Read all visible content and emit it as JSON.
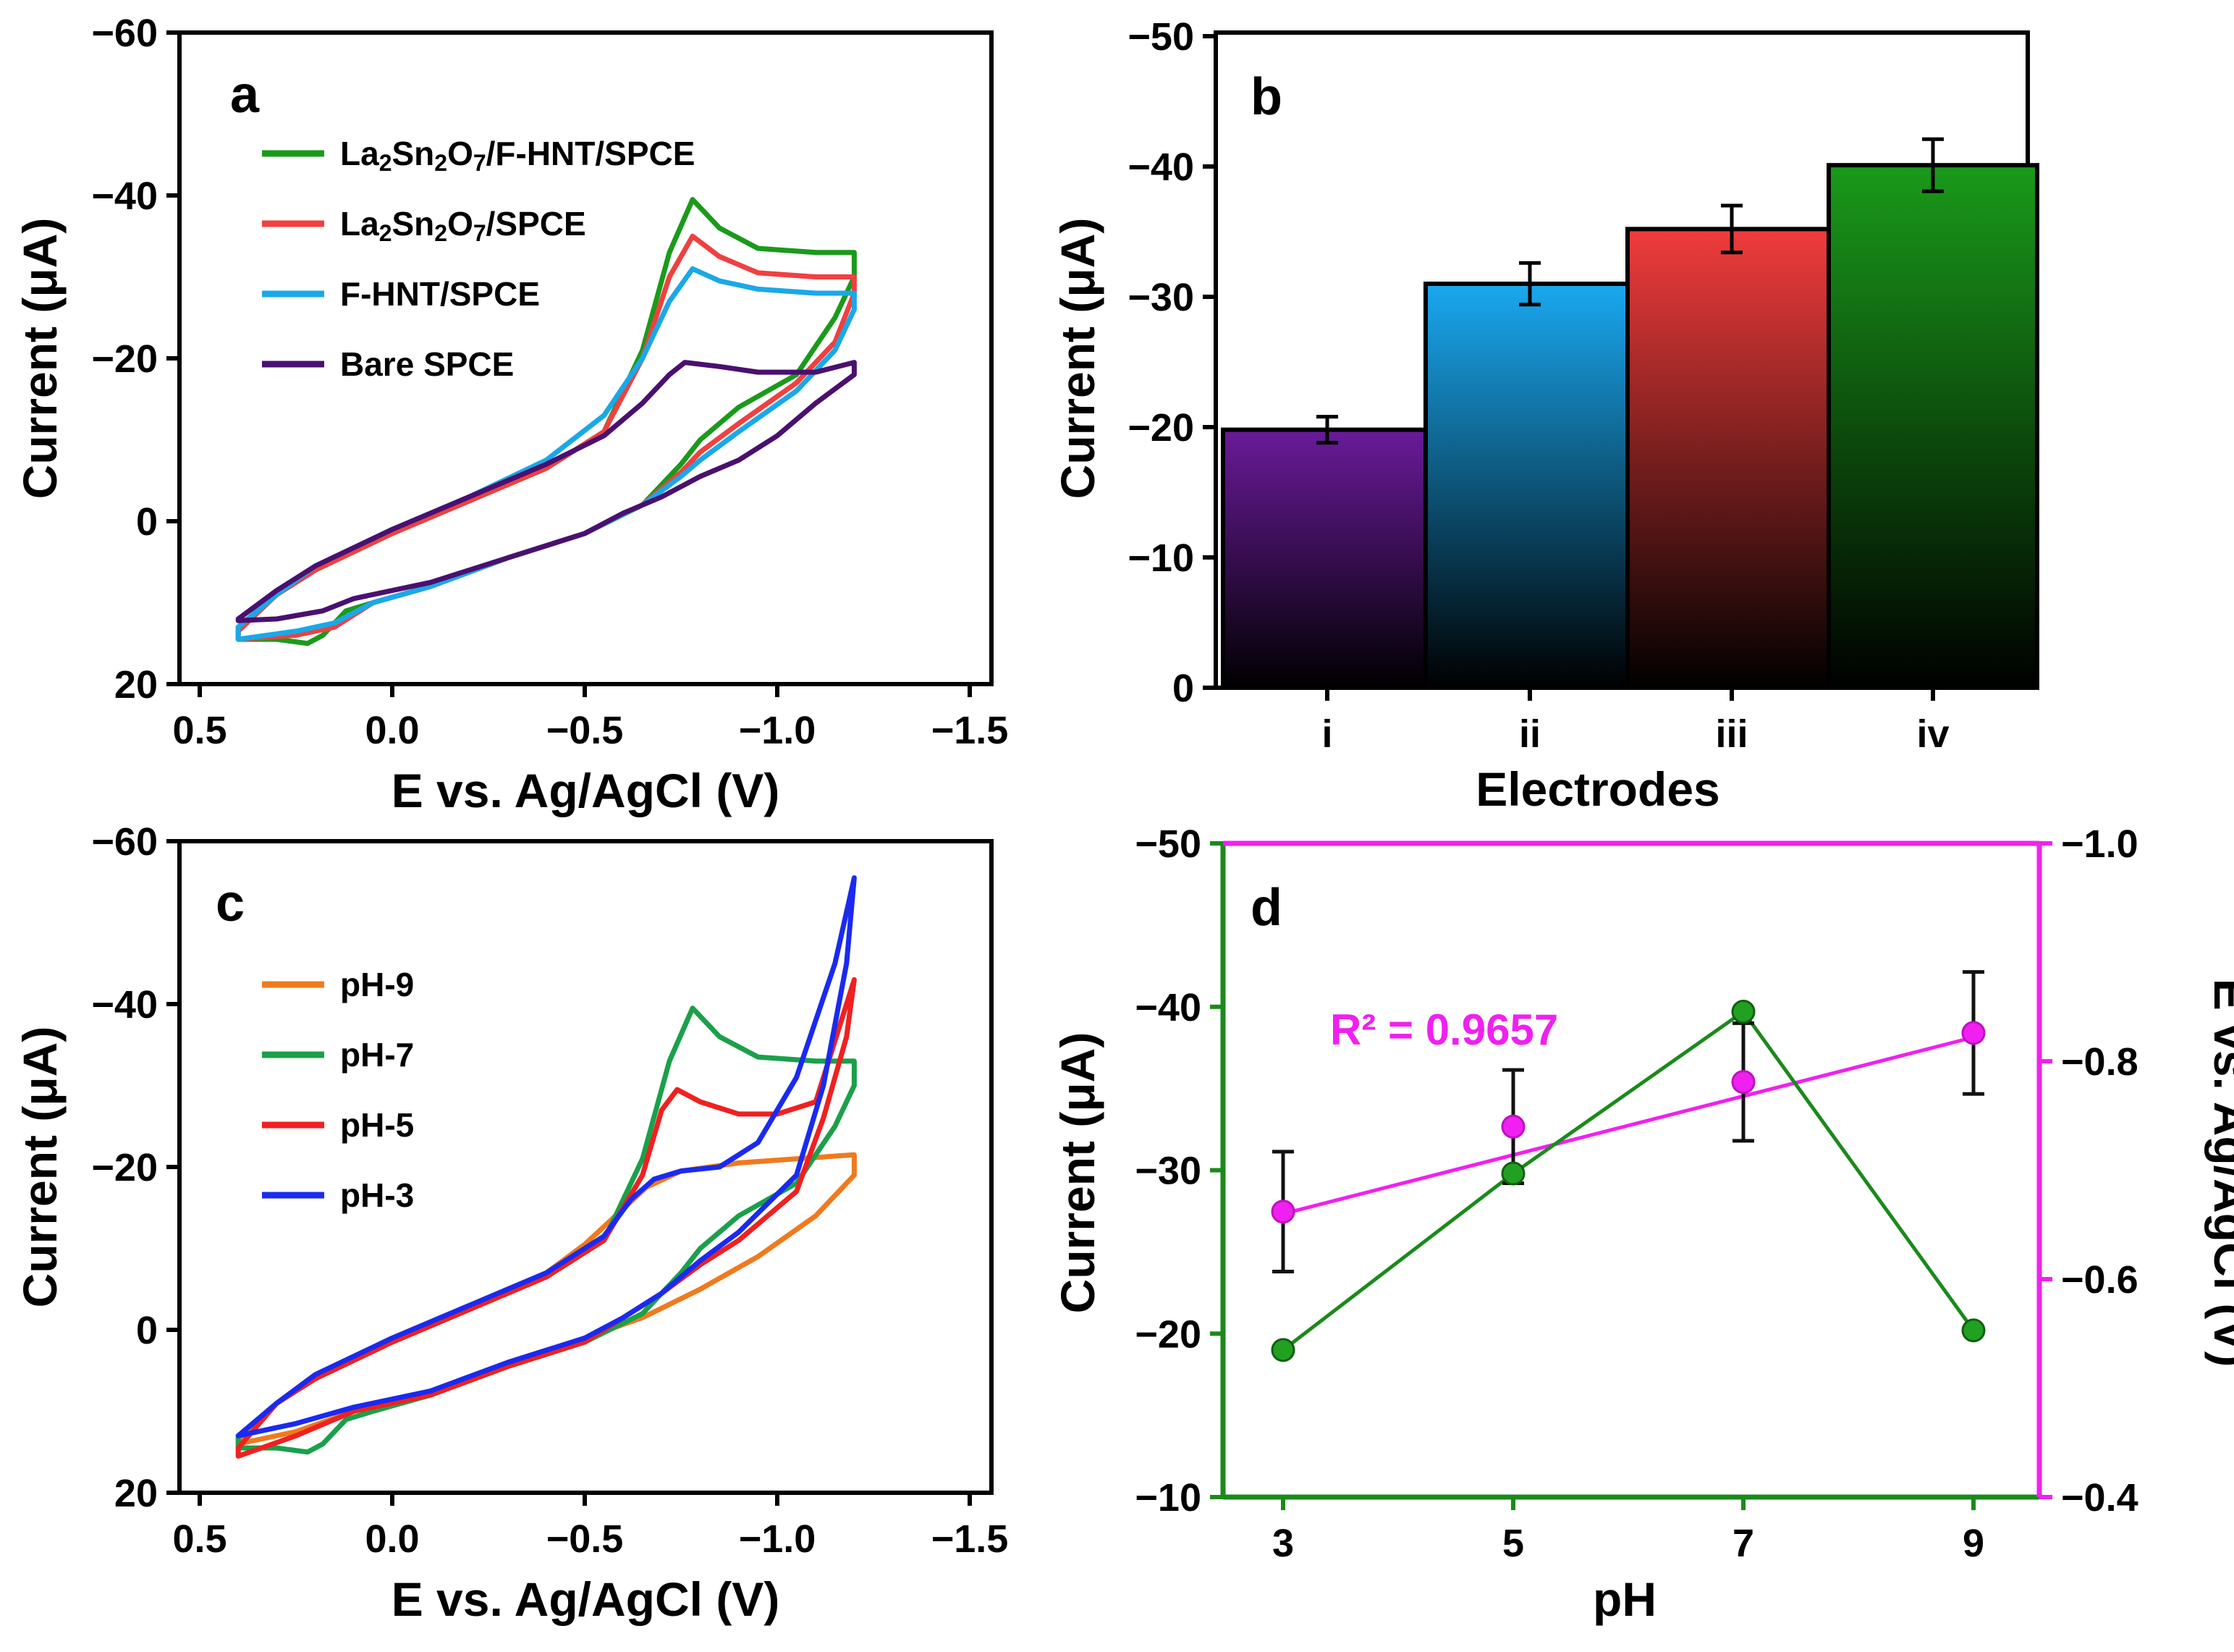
{
  "chart_data": [
    {
      "panel": "a",
      "type": "line",
      "xlabel": "E vs. Ag/AgCl (V)",
      "ylabel": "Current (μA)",
      "xlim": [
        0.5,
        -1.5
      ],
      "ylim": [
        20,
        -60
      ],
      "xticks": [
        "0.5",
        "0.0",
        "−0.5",
        "−1.0",
        "−1.5"
      ],
      "yticks": [
        "20",
        "0",
        "−20",
        "−40",
        "−60"
      ],
      "legend_position": "top-left",
      "series": [
        {
          "name": "La2Sn2O7/F-HNT/SPCE",
          "color": "#1a9a1a",
          "points": [
            [
              0.4,
              13
            ],
            [
              0.3,
              9
            ],
            [
              0.2,
              6
            ],
            [
              0.0,
              1.5
            ],
            [
              -0.2,
              -2.5
            ],
            [
              -0.4,
              -6.5
            ],
            [
              -0.55,
              -11
            ],
            [
              -0.65,
              -21
            ],
            [
              -0.72,
              -33
            ],
            [
              -0.78,
              -39.5
            ],
            [
              -0.85,
              -36
            ],
            [
              -0.95,
              -33.5
            ],
            [
              -1.1,
              -33
            ],
            [
              -1.2,
              -33
            ],
            [
              -1.2,
              -30
            ],
            [
              -1.15,
              -25
            ],
            [
              -1.05,
              -18
            ],
            [
              -0.9,
              -14
            ],
            [
              -0.8,
              -10
            ],
            [
              -0.75,
              -7
            ],
            [
              -0.65,
              -2
            ],
            [
              -0.5,
              1.5
            ],
            [
              -0.3,
              4.5
            ],
            [
              -0.1,
              8
            ],
            [
              0.05,
              10
            ],
            [
              0.12,
              11
            ],
            [
              0.18,
              14
            ],
            [
              0.22,
              15
            ],
            [
              0.3,
              14.5
            ],
            [
              0.4,
              14.5
            ]
          ]
        },
        {
          "name": "La2Sn2O7/SPCE",
          "color": "#f04040",
          "points": [
            [
              0.4,
              13.5
            ],
            [
              0.3,
              9
            ],
            [
              0.2,
              6
            ],
            [
              0.0,
              1.5
            ],
            [
              -0.2,
              -2.5
            ],
            [
              -0.4,
              -6.5
            ],
            [
              -0.55,
              -11
            ],
            [
              -0.65,
              -20
            ],
            [
              -0.72,
              -30
            ],
            [
              -0.78,
              -35
            ],
            [
              -0.85,
              -32.5
            ],
            [
              -0.95,
              -30.5
            ],
            [
              -1.1,
              -30
            ],
            [
              -1.2,
              -30
            ],
            [
              -1.2,
              -28
            ],
            [
              -1.15,
              -22
            ],
            [
              -1.05,
              -17
            ],
            [
              -0.9,
              -12
            ],
            [
              -0.8,
              -8.5
            ],
            [
              -0.75,
              -6
            ],
            [
              -0.65,
              -2
            ],
            [
              -0.5,
              1.5
            ],
            [
              -0.3,
              4.5
            ],
            [
              -0.1,
              8
            ],
            [
              0.05,
              10
            ],
            [
              0.15,
              13
            ],
            [
              0.25,
              14
            ],
            [
              0.4,
              14.5
            ]
          ]
        },
        {
          "name": "F-HNT/SPCE",
          "color": "#1aa8e8",
          "points": [
            [
              0.4,
              13
            ],
            [
              0.3,
              9
            ],
            [
              0.2,
              5.5
            ],
            [
              0.0,
              1
            ],
            [
              -0.2,
              -3
            ],
            [
              -0.4,
              -7.5
            ],
            [
              -0.55,
              -13
            ],
            [
              -0.65,
              -20
            ],
            [
              -0.72,
              -27
            ],
            [
              -0.78,
              -31
            ],
            [
              -0.85,
              -29.5
            ],
            [
              -0.95,
              -28.5
            ],
            [
              -1.1,
              -28
            ],
            [
              -1.2,
              -28
            ],
            [
              -1.2,
              -26
            ],
            [
              -1.15,
              -21
            ],
            [
              -1.05,
              -16
            ],
            [
              -0.9,
              -11
            ],
            [
              -0.8,
              -7.5
            ],
            [
              -0.75,
              -5.5
            ],
            [
              -0.65,
              -2
            ],
            [
              -0.5,
              1.5
            ],
            [
              -0.3,
              4.5
            ],
            [
              -0.1,
              8
            ],
            [
              0.05,
              10
            ],
            [
              0.15,
              12.5
            ],
            [
              0.25,
              13.5
            ],
            [
              0.4,
              14.5
            ]
          ]
        },
        {
          "name": "Bare SPCE",
          "color": "#4a1070",
          "points": [
            [
              0.4,
              12
            ],
            [
              0.3,
              8.5
            ],
            [
              0.2,
              5.5
            ],
            [
              0.0,
              1
            ],
            [
              -0.2,
              -3
            ],
            [
              -0.4,
              -7
            ],
            [
              -0.55,
              -10.5
            ],
            [
              -0.65,
              -14.5
            ],
            [
              -0.72,
              -18
            ],
            [
              -0.76,
              -19.5
            ],
            [
              -0.85,
              -19
            ],
            [
              -0.95,
              -18.3
            ],
            [
              -1.1,
              -18.3
            ],
            [
              -1.2,
              -19.5
            ],
            [
              -1.2,
              -18
            ],
            [
              -1.1,
              -14.5
            ],
            [
              -1.0,
              -10.5
            ],
            [
              -0.9,
              -7.5
            ],
            [
              -0.8,
              -5.5
            ],
            [
              -0.7,
              -3
            ],
            [
              -0.6,
              -1
            ],
            [
              -0.5,
              1.5
            ],
            [
              -0.3,
              4.5
            ],
            [
              -0.1,
              7.5
            ],
            [
              0.1,
              9.5
            ],
            [
              0.18,
              11
            ],
            [
              0.3,
              12
            ],
            [
              0.4,
              12.2
            ]
          ]
        }
      ]
    },
    {
      "panel": "b",
      "type": "bar",
      "xlabel": "Electrodes",
      "ylabel": "Current (μA)",
      "ylim": [
        0,
        -50
      ],
      "yticks": [
        "0",
        "−10",
        "−20",
        "−30",
        "−40",
        "−50"
      ],
      "categories": [
        "i",
        "ii",
        "iii",
        "iv"
      ],
      "values": [
        -19.8,
        -31,
        -35.2,
        -40.1
      ],
      "errors": [
        1,
        1.6,
        1.8,
        2
      ],
      "colors": [
        "#6a1a9a",
        "#1aa8f0",
        "#f03c3c",
        "#1a9a1a"
      ]
    },
    {
      "panel": "c",
      "type": "line",
      "xlabel": "E vs. Ag/AgCl (V)",
      "ylabel": "Current (μA)",
      "xlim": [
        0.5,
        -1.5
      ],
      "ylim": [
        20,
        -60
      ],
      "xticks": [
        "0.5",
        "0.0",
        "−0.5",
        "−1.0",
        "−1.5"
      ],
      "yticks": [
        "20",
        "0",
        "−20",
        "−40",
        "−60"
      ],
      "legend_position": "top-left",
      "series": [
        {
          "name": "pH-9",
          "color": "#f07a1e",
          "points": [
            [
              0.4,
              13.5
            ],
            [
              0.3,
              9
            ],
            [
              0.2,
              5.5
            ],
            [
              0.0,
              1
            ],
            [
              -0.2,
              -3
            ],
            [
              -0.4,
              -7
            ],
            [
              -0.5,
              -10.5
            ],
            [
              -0.58,
              -14
            ],
            [
              -0.66,
              -17.5
            ],
            [
              -0.75,
              -19.5
            ],
            [
              -0.9,
              -20.5
            ],
            [
              -1.05,
              -21
            ],
            [
              -1.2,
              -21.5
            ],
            [
              -1.2,
              -19
            ],
            [
              -1.1,
              -14
            ],
            [
              -0.95,
              -9
            ],
            [
              -0.8,
              -5
            ],
            [
              -0.65,
              -1.5
            ],
            [
              -0.5,
              1
            ],
            [
              -0.3,
              4
            ],
            [
              -0.1,
              7.5
            ],
            [
              0.1,
              10
            ],
            [
              0.25,
              12.5
            ],
            [
              0.4,
              14
            ]
          ]
        },
        {
          "name": "pH-7",
          "color": "#1aa04a",
          "points": [
            [
              0.4,
              13
            ],
            [
              0.3,
              9
            ],
            [
              0.2,
              6
            ],
            [
              0.0,
              1.5
            ],
            [
              -0.2,
              -2.5
            ],
            [
              -0.4,
              -6.5
            ],
            [
              -0.55,
              -11
            ],
            [
              -0.65,
              -21
            ],
            [
              -0.72,
              -33
            ],
            [
              -0.78,
              -39.5
            ],
            [
              -0.85,
              -36
            ],
            [
              -0.95,
              -33.5
            ],
            [
              -1.1,
              -33
            ],
            [
              -1.2,
              -33
            ],
            [
              -1.2,
              -30
            ],
            [
              -1.15,
              -25
            ],
            [
              -1.05,
              -18
            ],
            [
              -0.9,
              -14
            ],
            [
              -0.8,
              -10
            ],
            [
              -0.75,
              -7
            ],
            [
              -0.65,
              -2
            ],
            [
              -0.5,
              1.5
            ],
            [
              -0.3,
              4.5
            ],
            [
              -0.1,
              8
            ],
            [
              0.05,
              10
            ],
            [
              0.12,
              11
            ],
            [
              0.18,
              14
            ],
            [
              0.22,
              15
            ],
            [
              0.3,
              14.5
            ],
            [
              0.4,
              14.5
            ]
          ]
        },
        {
          "name": "pH-5",
          "color": "#f02020",
          "points": [
            [
              0.4,
              14.5
            ],
            [
              0.3,
              9
            ],
            [
              0.2,
              6
            ],
            [
              0.0,
              1.5
            ],
            [
              -0.2,
              -2.5
            ],
            [
              -0.4,
              -6.5
            ],
            [
              -0.55,
              -11
            ],
            [
              -0.65,
              -19
            ],
            [
              -0.7,
              -27
            ],
            [
              -0.74,
              -29.5
            ],
            [
              -0.8,
              -28
            ],
            [
              -0.9,
              -26.5
            ],
            [
              -1.0,
              -26.5
            ],
            [
              -1.1,
              -28
            ],
            [
              -1.2,
              -43
            ],
            [
              -1.18,
              -36
            ],
            [
              -1.12,
              -26
            ],
            [
              -1.05,
              -17
            ],
            [
              -0.9,
              -11
            ],
            [
              -0.8,
              -8
            ],
            [
              -0.7,
              -4.5
            ],
            [
              -0.6,
              -1.5
            ],
            [
              -0.5,
              1.5
            ],
            [
              -0.3,
              4.5
            ],
            [
              -0.1,
              8
            ],
            [
              0.1,
              10
            ],
            [
              0.25,
              13
            ],
            [
              0.4,
              15.5
            ]
          ]
        },
        {
          "name": "pH-3",
          "color": "#1a2af0",
          "points": [
            [
              0.4,
              13
            ],
            [
              0.3,
              9
            ],
            [
              0.2,
              5.5
            ],
            [
              0.0,
              1
            ],
            [
              -0.2,
              -3
            ],
            [
              -0.4,
              -7
            ],
            [
              -0.55,
              -11.5
            ],
            [
              -0.62,
              -16
            ],
            [
              -0.68,
              -18.5
            ],
            [
              -0.75,
              -19.5
            ],
            [
              -0.85,
              -20
            ],
            [
              -0.95,
              -23
            ],
            [
              -1.05,
              -31
            ],
            [
              -1.15,
              -45
            ],
            [
              -1.2,
              -55.5
            ],
            [
              -1.18,
              -45
            ],
            [
              -1.12,
              -30
            ],
            [
              -1.05,
              -19
            ],
            [
              -0.9,
              -12
            ],
            [
              -0.8,
              -8.5
            ],
            [
              -0.7,
              -4.5
            ],
            [
              -0.6,
              -1.5
            ],
            [
              -0.5,
              1
            ],
            [
              -0.3,
              4
            ],
            [
              -0.1,
              7.5
            ],
            [
              0.1,
              9.5
            ],
            [
              0.25,
              11.5
            ],
            [
              0.4,
              13
            ]
          ]
        }
      ]
    },
    {
      "panel": "d",
      "type": "line",
      "xlabel": "pH",
      "ylabel": "Current (μA)",
      "y2label": "E vs. Ag/AgCl (V)",
      "x": [
        3,
        5,
        7,
        9
      ],
      "xticks": [
        "3",
        "5",
        "7",
        "9"
      ],
      "ylim": [
        -10,
        -50
      ],
      "y2lim": [
        -0.4,
        -1.0
      ],
      "yticks": [
        "−10",
        "−20",
        "−30",
        "−40",
        "−50"
      ],
      "y2ticks": [
        "−0.4",
        "−0.6",
        "−0.8",
        "−1.0"
      ],
      "annotation": "R² = 0.9657",
      "current_color": "#1a8a1a",
      "potential_color": "#f020f0",
      "current_values": [
        -19,
        -29.8,
        -39.7,
        -20.2
      ],
      "potential_values": [
        -0.662,
        -0.74,
        -0.781,
        -0.826
      ],
      "potential_errors": [
        0.055,
        0.052,
        0.054,
        0.056
      ],
      "potential_fit": [
        -0.66,
        -0.822
      ]
    }
  ]
}
